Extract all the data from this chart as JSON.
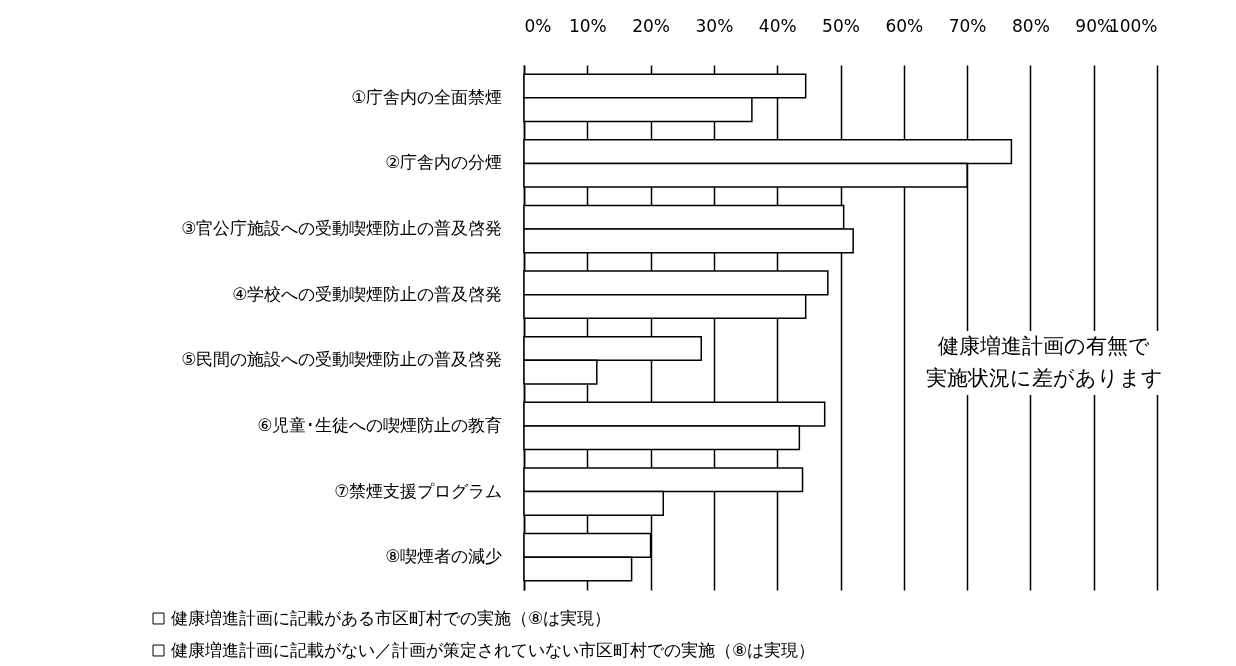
{
  "chart_data": {
    "type": "bar",
    "orientation": "horizontal",
    "categories": [
      "①庁舎内の全面禁煙",
      "②庁舎内の分煙",
      "③官公庁施設への受動喫煙防止の普及啓発",
      "④学校への受動喫煙防止の普及啓発",
      "⑤民間の施設への受動喫煙防止の普及啓発",
      "⑥児童･生徒への喫煙防止の教育",
      "⑦禁煙支援プログラム",
      "⑧喫煙者の減少"
    ],
    "series": [
      {
        "name": "健康増進計画に記載がある市区町村での実施（⑧は実現）",
        "color": "#ffffff",
        "values": [
          44.5,
          77,
          50.5,
          48,
          28,
          47.5,
          44,
          20
        ]
      },
      {
        "name": "健康増進計画に記載がない／計画が策定されていない市区町村での実施（⑧は実現）",
        "color": "#ffffff",
        "values": [
          36,
          70,
          52,
          44.5,
          11.5,
          43.5,
          22,
          17
        ]
      }
    ],
    "xlim": [
      0,
      100
    ],
    "xticks": [
      {
        "value": 0,
        "label": "0%"
      },
      {
        "value": 10,
        "label": "10%"
      },
      {
        "value": 20,
        "label": "20%"
      },
      {
        "value": 30,
        "label": "30%"
      },
      {
        "value": 40,
        "label": "40%"
      },
      {
        "value": 50,
        "label": "50%"
      },
      {
        "value": 60,
        "label": "60%"
      },
      {
        "value": 70,
        "label": "70%"
      },
      {
        "value": 80,
        "label": "80%"
      },
      {
        "value": 90,
        "label": "90%"
      },
      {
        "value": 100,
        "label": "100%"
      }
    ],
    "grid": "x",
    "legend": "bottom",
    "annotations": [
      "健康増進計画の有無で",
      "実施状況に差があります"
    ]
  }
}
